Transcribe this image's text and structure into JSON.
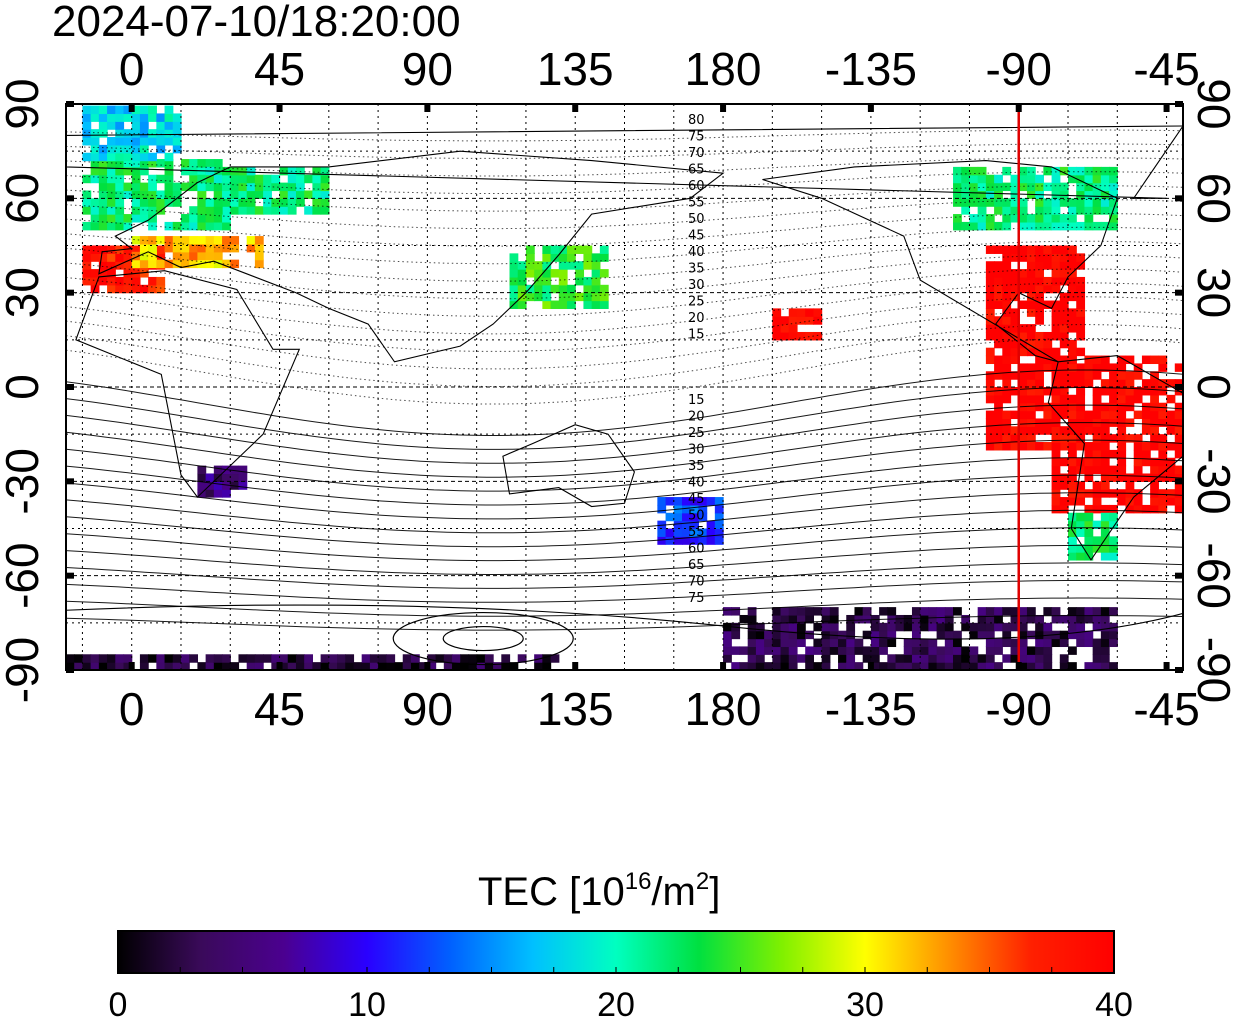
{
  "title": "2024-07-10/18:20:00",
  "map": {
    "lon_ticks": [
      "0",
      "45",
      "90",
      "135",
      "180",
      "-135",
      "-90",
      "-45"
    ],
    "lon_tick_values": [
      0,
      45,
      90,
      135,
      180,
      225,
      270,
      315
    ],
    "lat_ticks": [
      "90",
      "60",
      "30",
      "0",
      "-30",
      "-60",
      "-90"
    ],
    "lat_tick_values": [
      90,
      60,
      30,
      0,
      -30,
      -60,
      -90
    ],
    "lon_range": [
      -20,
      320
    ],
    "lat_range": [
      -90,
      90
    ],
    "grid": true,
    "terminator_longitude": 270,
    "terminator_color": "#e00000",
    "contour_labels_north": [
      "80",
      "75",
      "70",
      "65",
      "60",
      "55",
      "50",
      "45",
      "40",
      "35",
      "30",
      "25",
      "20",
      "15"
    ],
    "contour_labels_south": [
      "15",
      "20",
      "25",
      "30",
      "35",
      "40",
      "45",
      "50",
      "55",
      "60",
      "65",
      "70",
      "75"
    ]
  },
  "colorbar": {
    "title_main": "TEC  [10",
    "title_sup1": "16",
    "title_mid": "/m",
    "title_sup2": "2",
    "title_end": "]",
    "min": 0,
    "max": 40,
    "tick_labels": [
      "0",
      "10",
      "20",
      "30",
      "40"
    ],
    "tick_values": [
      0,
      10,
      20,
      30,
      40
    ],
    "palette": [
      "#000000",
      "#3a0a5a",
      "#4b0090",
      "#2a00ff",
      "#0060ff",
      "#00c0ff",
      "#00ffc0",
      "#00e040",
      "#80f000",
      "#ffff00",
      "#ff9000",
      "#ff2000",
      "#ff0000"
    ]
  },
  "chart_data": {
    "type": "heatmap",
    "title": "2024-07-10/18:20:00",
    "xlabel": "",
    "ylabel": "",
    "colorbar_label": "TEC [10^16/m^2]",
    "value_range": [
      0,
      40
    ],
    "regions": [
      {
        "lon": [
          -15,
          10
        ],
        "lat": [
          30,
          45
        ],
        "value": 38
      },
      {
        "lon": [
          0,
          40
        ],
        "lat": [
          38,
          48
        ],
        "value": 32
      },
      {
        "lon": [
          -15,
          30
        ],
        "lat": [
          50,
          72
        ],
        "value": 22
      },
      {
        "lon": [
          -15,
          15
        ],
        "lat": [
          72,
          88
        ],
        "value": 18
      },
      {
        "lon": [
          20,
          60
        ],
        "lat": [
          55,
          70
        ],
        "value": 22
      },
      {
        "lon": [
          115,
          145
        ],
        "lat": [
          25,
          45
        ],
        "value": 24
      },
      {
        "lon": [
          20,
          35
        ],
        "lat": [
          -35,
          -25
        ],
        "value": 5
      },
      {
        "lon": [
          -100,
          -70
        ],
        "lat": [
          -20,
          45
        ],
        "value": 40
      },
      {
        "lon": [
          -80,
          -35
        ],
        "lat": [
          -40,
          10
        ],
        "value": 40
      },
      {
        "lon": [
          -75,
          -60
        ],
        "lat": [
          -55,
          -40
        ],
        "value": 22
      },
      {
        "lon": [
          -110,
          -60
        ],
        "lat": [
          50,
          70
        ],
        "value": 22
      },
      {
        "lon": [
          -180,
          -60
        ],
        "lat": [
          -90,
          -70
        ],
        "value": 3
      },
      {
        "lon": [
          -20,
          130
        ],
        "lat": [
          -90,
          -85
        ],
        "value": 2
      },
      {
        "lon": [
          160,
          180
        ],
        "lat": [
          -50,
          -35
        ],
        "value": 12
      },
      {
        "lon": [
          -165,
          -150
        ],
        "lat": [
          15,
          25
        ],
        "value": 40
      }
    ]
  }
}
